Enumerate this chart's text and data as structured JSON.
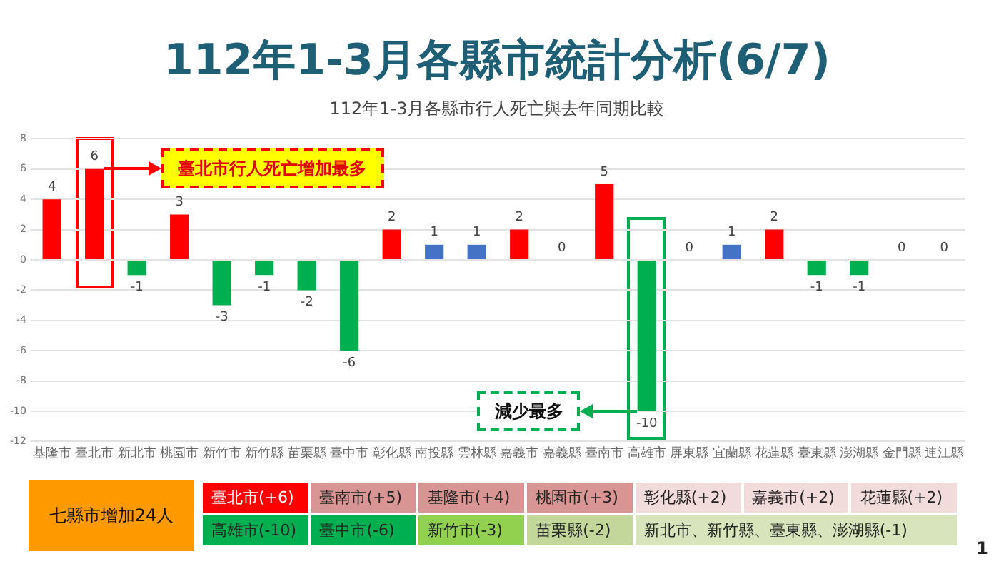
{
  "chart_data": {
    "type": "bar",
    "title": "112年1-3月各縣市統計分析(6/7)",
    "subtitle": "112年1-3月各縣市行人死亡與去年同期比較",
    "categories": [
      "基隆市",
      "臺北市",
      "新北市",
      "桃園市",
      "新竹市",
      "新竹縣",
      "苗栗縣",
      "臺中市",
      "彰化縣",
      "南投縣",
      "雲林縣",
      "嘉義市",
      "嘉義縣",
      "臺南市",
      "高雄市",
      "屏東縣",
      "宜蘭縣",
      "花蓮縣",
      "臺東縣",
      "澎湖縣",
      "金門縣",
      "連江縣"
    ],
    "values": [
      4,
      6,
      -1,
      3,
      -3,
      -1,
      -2,
      -6,
      2,
      1,
      1,
      2,
      0,
      5,
      -10,
      0,
      1,
      2,
      -1,
      -1,
      0,
      0
    ],
    "colors": [
      "#ff0000",
      "#ff0000",
      "#00b050",
      "#ff0000",
      "#00b050",
      "#00b050",
      "#00b050",
      "#00b050",
      "#ff0000",
      "#4472c4",
      "#4472c4",
      "#ff0000",
      "#4472c4",
      "#ff0000",
      "#00b050",
      "#4472c4",
      "#4472c4",
      "#ff0000",
      "#00b050",
      "#00b050",
      "#4472c4",
      "#4472c4"
    ],
    "ylim": [
      -12,
      8
    ],
    "yticks": [
      -12,
      -10,
      -8,
      -6,
      -4,
      -2,
      0,
      2,
      4,
      6,
      8
    ],
    "grid": "y",
    "data_labels": true,
    "legend": false,
    "annotations": [
      "臺北市行人死亡增加最多",
      "減少最多",
      "七縣市增加24人",
      "臺北市(+6)",
      "臺南市(+5)",
      "基隆市(+4)",
      "桃園市(+3)",
      "彰化縣(+2)",
      "嘉義市(+2)",
      "花蓮縣(+2)",
      "高雄市(-10)",
      "臺中市(-6)",
      "新竹市(-3)",
      "苗栗縣(-2)",
      "新北市、新竹縣、臺東縣、澎湖縣(-1)",
      "1"
    ]
  }
}
